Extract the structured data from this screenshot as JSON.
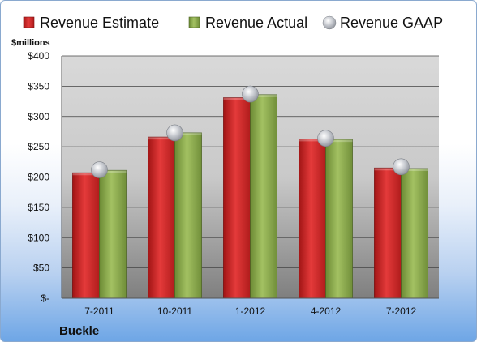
{
  "chart_data": {
    "type": "bar",
    "unit_label": "$millions",
    "company": "Buckle",
    "categories": [
      "7-2011",
      "10-2011",
      "1-2012",
      "4-2012",
      "7-2012"
    ],
    "series": [
      {
        "name": "Revenue Estimate",
        "values": [
          207,
          266,
          331,
          263,
          215
        ],
        "color": "#d42a2a"
      },
      {
        "name": "Revenue Actual",
        "values": [
          211,
          273,
          336,
          262,
          214
        ],
        "color": "#8fac4e"
      },
      {
        "name": "Revenue GAAP",
        "values": [
          212,
          273,
          337,
          264,
          217
        ],
        "color": "#b8bcc4",
        "marker": "sphere"
      }
    ],
    "yticks": [
      "$-",
      "$50",
      "$100",
      "$150",
      "$200",
      "$250",
      "$300",
      "$350",
      "$400"
    ],
    "ylim": [
      0,
      400
    ],
    "grid": true,
    "legend_position": "top"
  }
}
